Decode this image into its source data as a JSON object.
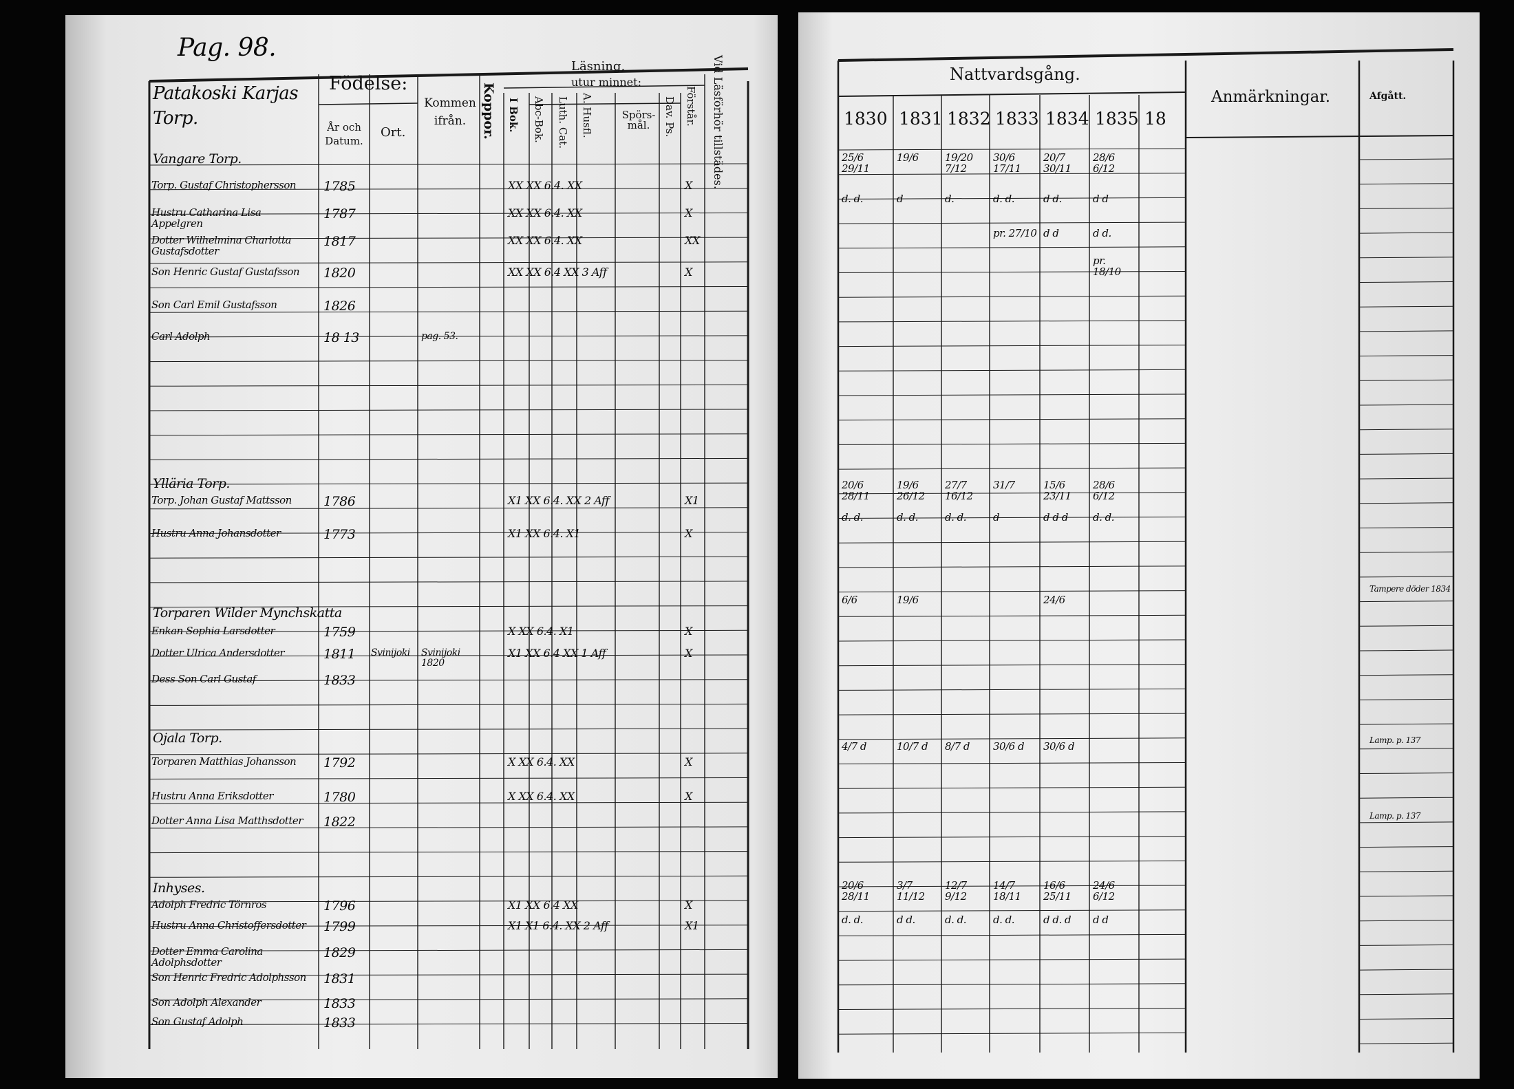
{
  "left_page": {
    "page_number": "Pag. 98.",
    "village": "Patakoski Karjas Torp.",
    "headers": {
      "fodelse": "Födelse:",
      "ar_och_datum": "År och Datum.",
      "ort": "Ort.",
      "kommen_ifran": "Kommen ifrån.",
      "koppor": "Koppor.",
      "lasning": "Läsning,",
      "utur_minnet": "utur minnet:",
      "i_bok": "I Bok.",
      "abc_bok": "Abc-Bok.",
      "luth_cat": "Luth. Cat.",
      "husfl": "A. Husfl.",
      "spors_mal": "Spörs-mål.",
      "dav_ps": "Dav. Ps.",
      "forstar": "Förstår.",
      "vid_lasforhor": "Vid Läsförhör tillstädes."
    },
    "sections": [
      {
        "title": "Vangare Torp.",
        "rows": [
          {
            "name": "Torp. Gustaf Christophersson",
            "year": "1785",
            "marks": "XX XX 6.4. XX",
            "forstar": "X"
          },
          {
            "name": "Hustru Catharina Lisa Appelgren",
            "year": "1787",
            "marks": "XX XX 6.4. XX",
            "forstar": "X"
          },
          {
            "name": "Dotter Wilhelmina Charlotta Gustafsdotter",
            "year": "1817",
            "marks": "XX XX 6.4. XX",
            "forstar": "XX"
          },
          {
            "name": "Son Henric Gustaf Gustafsson",
            "year": "1820",
            "marks": "XX XX 6.4 XX 3 Aff",
            "forstar": "X"
          },
          {
            "name": "Son Carl Emil Gustafsson",
            "year": "1826",
            "marks": "",
            "forstar": ""
          },
          {
            "name": "Carl Adolph",
            "year": "18 13",
            "kommen": "pag. 53.",
            "marks": "",
            "forstar": ""
          }
        ]
      },
      {
        "title": "Ylläria Torp.",
        "rows": [
          {
            "name": "Torp. Johan Gustaf Mattsson",
            "year": "1786",
            "marks": "X1 XX 6.4. XX 2 Aff",
            "forstar": "X1"
          },
          {
            "name": "Hustru Anna Johansdotter",
            "year": "1773",
            "marks": "X1 XX 6.4. X1",
            "forstar": "X"
          }
        ]
      },
      {
        "title": "Torparen Wilder Mynchskatta",
        "rows": [
          {
            "name": "Enkan Sophia Larsdotter",
            "year": "1759",
            "marks": "X XX 6.4. X1",
            "forstar": "X"
          },
          {
            "name": "Dotter Ulrica Andersdotter",
            "year": "1811",
            "ort": "Svinijoki",
            "kommen": "Svinijoki 1820",
            "marks": "X1 XX 6.4 XX 1 Aff",
            "forstar": "X"
          },
          {
            "name": "Dess Son Carl Gustaf",
            "year": "1833",
            "marks": "",
            "forstar": ""
          }
        ]
      },
      {
        "title": "Ojala Torp.",
        "rows": [
          {
            "name": "Torparen Matthias Johansson",
            "year": "1792",
            "marks": "X XX 6.4. XX",
            "forstar": "X"
          },
          {
            "name": "Hustru Anna Eriksdotter",
            "year": "1780",
            "marks": "X XX 6.4. XX",
            "forstar": "X"
          },
          {
            "name": "Dotter Anna Lisa Matthsdotter",
            "year": "1822",
            "marks": "",
            "forstar": ""
          }
        ]
      },
      {
        "title": "Inhyses.",
        "rows": [
          {
            "name": "Adolph Fredric Törnros",
            "year": "1796",
            "marks": "X1 XX 6.4 XX",
            "forstar": "X"
          },
          {
            "name": "Hustru Anna Christoffersdotter",
            "year": "1799",
            "marks": "X1 X1 6.4. XX 2 Aff",
            "forstar": "X1"
          },
          {
            "name": "Dotter Emma Carolina Adolphsdotter",
            "year": "1829",
            "marks": "",
            "forstar": ""
          },
          {
            "name": "Son Henric Fredric Adolphsson",
            "year": "1831",
            "marks": "",
            "forstar": ""
          },
          {
            "name": "Son Adolph Alexander",
            "year": "1833",
            "marks": "",
            "forstar": ""
          },
          {
            "name": "Son Gustaf Adolph",
            "year": "1833",
            "marks": "",
            "forstar": ""
          }
        ]
      }
    ]
  },
  "right_page": {
    "headers": {
      "nattvardsgang": "Nattvardsgång.",
      "years": [
        "1830",
        "1831",
        "1832",
        "1833",
        "1834",
        "1835",
        "18"
      ],
      "anmarkningar": "Anmärkningar.",
      "afgatt": "Afgått."
    },
    "communion_rows": [
      {
        "cells": [
          "25/6 29/11",
          "19/6",
          "19/20 7/12",
          "30/6 17/11",
          "20/7 30/11",
          "28/6 6/12"
        ]
      },
      {
        "cells": [
          "d. d.",
          "d",
          "d.",
          "d. d.",
          "d d.",
          "d d"
        ]
      },
      {
        "cells": [
          "",
          "",
          "",
          "pr. 27/10",
          "d d",
          "d d."
        ]
      },
      {
        "cells": [
          "",
          "",
          "",
          "",
          "",
          "pr. 18/10"
        ]
      },
      {
        "cells": [
          "20/6 28/11",
          "19/6 26/12",
          "27/7 16/12",
          "31/7",
          "15/6 23/11",
          "28/6 6/12"
        ]
      },
      {
        "cells": [
          "d. d.",
          "d. d.",
          "d. d.",
          "d",
          "d d d",
          "d. d."
        ]
      },
      {
        "cells": [
          "6/6",
          "19/6",
          "",
          "",
          "24/6",
          ""
        ]
      },
      {
        "cells": [
          "4/7 d",
          "10/7 d",
          "8/7 d",
          "30/6 d",
          "30/6 d",
          ""
        ]
      },
      {
        "cells": [
          "20/6 28/11",
          "3/7 11/12",
          "12/7 9/12",
          "14/7 18/11",
          "16/6 25/11",
          "24/6 6/12"
        ]
      },
      {
        "cells": [
          "d. d.",
          "d d.",
          "d. d.",
          "d. d.",
          "d d. d",
          "d d"
        ]
      }
    ],
    "afgatt_notes": [
      "Tampere döder 1834",
      "Lamp. p. 137",
      "Lamp. p. 137"
    ]
  }
}
